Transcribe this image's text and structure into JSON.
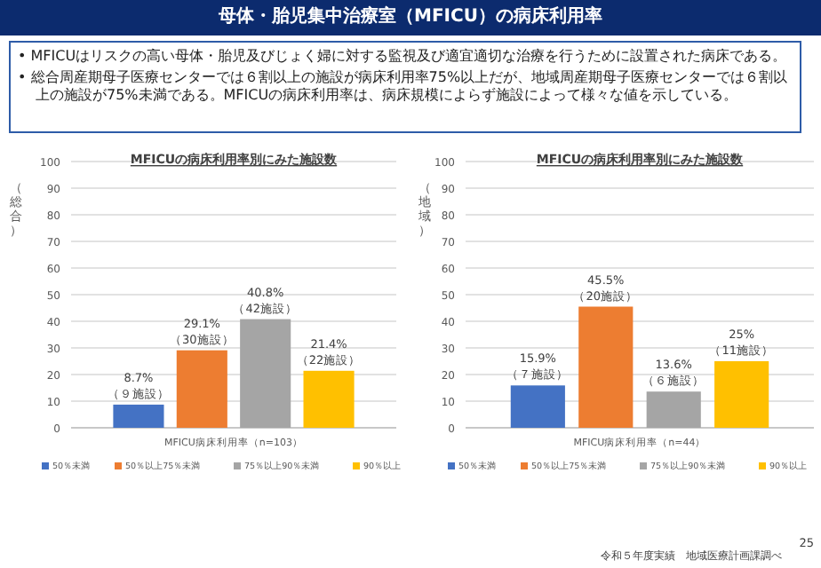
{
  "chart_data": [
    {
      "type": "bar",
      "title": "MFICUの病床利用率別にみた施設数",
      "ylabel": "（総合）",
      "categories": [
        "MFICU病床利用率（n=103）"
      ],
      "ylim": [
        0,
        100
      ],
      "yticks": [
        0,
        10,
        20,
        30,
        40,
        50,
        60,
        70,
        80,
        90,
        100
      ],
      "grid": "y",
      "legend": "bottom",
      "annotations": [
        "母体・胎児集中治療室（MFICU）の病床利用率",
        "• MFICUはリスクの高い母体・胎児及びじょく婦に対する監視及び適宜適切な治療を行うために設置された病床である。",
        "• 総合周産期母子医療センターでは６割以上の施設が病床利用率75%以上だが、地域周産期母子医療センターでは６割以上の施設が75%未満である。MFICUの病床利用率は、病床規模によらず施設によって様々な値を示している。"
      ],
      "series": [
        {
          "name": "50％未満",
          "color": "#4472c4",
          "values": [
            8.7
          ],
          "value_labels": [
            "8.7%\n（９施設）"
          ]
        },
        {
          "name": "50％以上75％未満",
          "color": "#ed7d31",
          "values": [
            29.1
          ],
          "value_labels": [
            "29.1%\n（30施設）"
          ]
        },
        {
          "name": "75％以上90％未満",
          "color": "#a5a5a5",
          "values": [
            40.8
          ],
          "value_labels": [
            "40.8%\n（42施設）"
          ]
        },
        {
          "name": "90％以上",
          "color": "#ffc000",
          "values": [
            21.4
          ],
          "value_labels": [
            "21.4%\n（22施設）"
          ]
        }
      ]
    },
    {
      "type": "bar",
      "title": "MFICUの病床利用率別にみた施設数",
      "ylabel": "（地域）",
      "categories": [
        "MFICU病床利用率（n=44）"
      ],
      "ylim": [
        0,
        100
      ],
      "yticks": [
        0,
        10,
        20,
        30,
        40,
        50,
        60,
        70,
        80,
        90,
        100
      ],
      "grid": "y",
      "legend": "bottom",
      "annotations": [
        "令和５年度実績　地域医療計画課調べ",
        "25"
      ],
      "series": [
        {
          "name": "50％未満",
          "color": "#4472c4",
          "values": [
            15.9
          ],
          "value_labels": [
            "15.9%\n（７施設）"
          ]
        },
        {
          "name": "50％以上75％未満",
          "color": "#ed7d31",
          "values": [
            45.5
          ],
          "value_labels": [
            "45.5%\n（20施設）"
          ]
        },
        {
          "name": "75％以上90％未満",
          "color": "#a5a5a5",
          "values": [
            13.6
          ],
          "value_labels": [
            "13.6%\n（６施設）"
          ]
        },
        {
          "name": "90％以上",
          "color": "#ffc000",
          "values": [
            25
          ],
          "value_labels": [
            "25%\n（11施設）"
          ]
        }
      ]
    }
  ]
}
